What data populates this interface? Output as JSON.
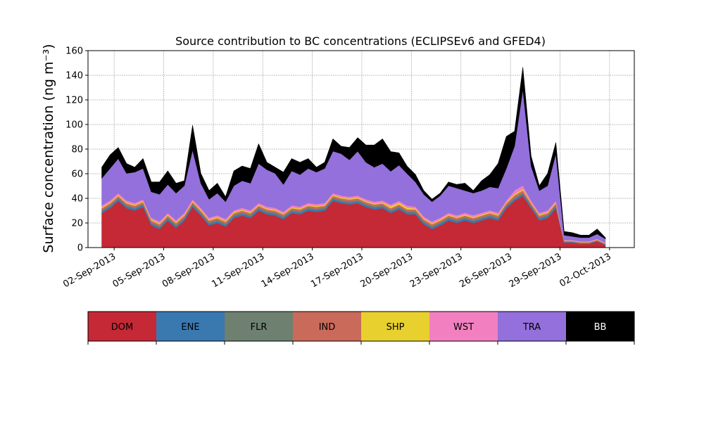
{
  "chart_data": {
    "type": "area",
    "stacked": true,
    "title": "Source contribution to BC concentrations (ECLIPSEv6 and GFED4)",
    "ylabel": "Surface concentration (ng m⁻³)",
    "xlabel": "",
    "ylim": [
      0,
      160
    ],
    "yticks": [
      "0",
      "20",
      "40",
      "60",
      "80",
      "100",
      "120",
      "140",
      "160"
    ],
    "xlim": [
      "2013-08-31 10:00",
      "2013-10-03 12:00"
    ],
    "xticks": [
      {
        "date": "2013-09-02",
        "label": "02-Sep-2013"
      },
      {
        "date": "2013-09-05",
        "label": "05-Sep-2013"
      },
      {
        "date": "2013-09-08",
        "label": "08-Sep-2013"
      },
      {
        "date": "2013-09-11",
        "label": "11-Sep-2013"
      },
      {
        "date": "2013-09-14",
        "label": "14-Sep-2013"
      },
      {
        "date": "2013-09-17",
        "label": "17-Sep-2013"
      },
      {
        "date": "2013-09-20",
        "label": "20-Sep-2013"
      },
      {
        "date": "2013-09-23",
        "label": "23-Sep-2013"
      },
      {
        "date": "2013-09-26",
        "label": "26-Sep-2013"
      },
      {
        "date": "2013-09-29",
        "label": "29-Sep-2013"
      },
      {
        "date": "2013-10-02",
        "label": "02-Oct-2013"
      }
    ],
    "grid": true,
    "legend": "colorbar-below",
    "x": [
      "2013-09-01 06:00",
      "2013-09-01 18:00",
      "2013-09-02 06:00",
      "2013-09-02 18:00",
      "2013-09-03 06:00",
      "2013-09-03 18:00",
      "2013-09-04 06:00",
      "2013-09-04 18:00",
      "2013-09-05 06:00",
      "2013-09-05 18:00",
      "2013-09-06 06:00",
      "2013-09-06 18:00",
      "2013-09-07 06:00",
      "2013-09-07 18:00",
      "2013-09-08 06:00",
      "2013-09-08 18:00",
      "2013-09-09 06:00",
      "2013-09-09 18:00",
      "2013-09-10 06:00",
      "2013-09-10 18:00",
      "2013-09-11 06:00",
      "2013-09-11 18:00",
      "2013-09-12 06:00",
      "2013-09-12 18:00",
      "2013-09-13 06:00",
      "2013-09-13 18:00",
      "2013-09-14 06:00",
      "2013-09-14 18:00",
      "2013-09-15 06:00",
      "2013-09-15 18:00",
      "2013-09-16 06:00",
      "2013-09-16 18:00",
      "2013-09-17 06:00",
      "2013-09-17 18:00",
      "2013-09-18 06:00",
      "2013-09-18 18:00",
      "2013-09-19 06:00",
      "2013-09-19 18:00",
      "2013-09-20 06:00",
      "2013-09-20 18:00",
      "2013-09-21 06:00",
      "2013-09-21 18:00",
      "2013-09-22 06:00",
      "2013-09-22 18:00",
      "2013-09-23 06:00",
      "2013-09-23 18:00",
      "2013-09-24 06:00",
      "2013-09-24 18:00",
      "2013-09-25 06:00",
      "2013-09-25 18:00",
      "2013-09-26 06:00",
      "2013-09-26 18:00",
      "2013-09-27 06:00",
      "2013-09-27 18:00",
      "2013-09-28 06:00",
      "2013-09-28 18:00",
      "2013-09-29 06:00",
      "2013-09-29 18:00",
      "2013-09-30 06:00",
      "2013-09-30 18:00",
      "2013-10-01 06:00",
      "2013-10-01 18:00"
    ],
    "series": [
      {
        "name": "DOM",
        "color": "#c42935",
        "values": [
          28,
          32,
          38,
          32,
          30,
          33,
          18,
          15,
          22,
          16,
          22,
          33,
          26,
          18,
          20,
          17,
          24,
          26,
          24,
          30,
          27,
          26,
          23,
          28,
          27,
          30,
          29,
          30,
          38,
          36,
          35,
          36,
          33,
          31,
          32,
          28,
          31,
          27,
          27,
          19,
          15,
          18,
          22,
          20,
          22,
          20,
          22,
          24,
          22,
          32,
          38,
          42,
          32,
          22,
          24,
          32,
          4,
          4,
          3,
          3,
          5,
          2
        ]
      },
      {
        "name": "ENE",
        "color": "#3a78b0",
        "values": [
          1.5,
          1.5,
          1.5,
          1.5,
          1.5,
          1.5,
          1.5,
          1.5,
          1.5,
          1.5,
          1.5,
          1.5,
          1.5,
          1.5,
          1.5,
          1.5,
          1.5,
          1.5,
          1.5,
          1.5,
          1.5,
          1.5,
          1.5,
          1.5,
          1.5,
          1.5,
          1.5,
          1.5,
          1.5,
          1.5,
          1.5,
          1.5,
          1.5,
          1.5,
          1.5,
          1.5,
          1.5,
          1.5,
          1.5,
          1.5,
          1.5,
          1.5,
          1.5,
          1.5,
          1.5,
          1.5,
          1.5,
          1.5,
          1.5,
          1.5,
          1.5,
          1.5,
          1.5,
          1.5,
          1.5,
          1.5,
          0.5,
          0.5,
          0.5,
          0.5,
          0.5,
          0.5
        ]
      },
      {
        "name": "FLR",
        "color": "#6e8070",
        "values": [
          1,
          1,
          1,
          1,
          1,
          1,
          1,
          1,
          1,
          1,
          1,
          1,
          1,
          1,
          1,
          1,
          1,
          1,
          1,
          1,
          1,
          1,
          1,
          1,
          1,
          1,
          1,
          1,
          1,
          1,
          1,
          1,
          1,
          1,
          1,
          1,
          1,
          1,
          1,
          1,
          1,
          1,
          1,
          1,
          1,
          1,
          1,
          1,
          1,
          1,
          1,
          1,
          1,
          1,
          1,
          1,
          0.3,
          0.3,
          0.3,
          0.3,
          0.3,
          0.3
        ]
      },
      {
        "name": "IND",
        "color": "#c96a5a",
        "values": [
          1.5,
          1.5,
          1.5,
          1.5,
          1.5,
          1.5,
          1.5,
          1.5,
          1.5,
          1.5,
          1.5,
          1.5,
          1.5,
          1.5,
          1.5,
          1.5,
          1.5,
          1.5,
          1.5,
          1.5,
          1.5,
          1.5,
          1.5,
          1.5,
          1.5,
          1.5,
          1.5,
          1.5,
          1.5,
          1.5,
          1.5,
          1.5,
          1.5,
          1.5,
          1.5,
          1.5,
          1.5,
          1.5,
          1.5,
          1.5,
          1.5,
          1.5,
          1.5,
          1.5,
          1.5,
          1.5,
          1.5,
          1.5,
          1.5,
          1.5,
          2,
          2,
          1.5,
          1.5,
          1.5,
          1.5,
          0.5,
          0.5,
          0.5,
          0.5,
          0.5,
          0.5
        ]
      },
      {
        "name": "SHP",
        "color": "#e8d02e",
        "values": [
          0.8,
          0.8,
          0.8,
          0.8,
          0.8,
          0.8,
          0.8,
          0.8,
          0.8,
          0.8,
          0.8,
          0.8,
          0.8,
          0.8,
          0.8,
          0.8,
          0.8,
          0.8,
          0.8,
          0.8,
          0.8,
          0.8,
          0.8,
          0.8,
          0.8,
          0.8,
          0.8,
          0.8,
          0.8,
          0.8,
          0.8,
          0.8,
          0.8,
          0.8,
          0.8,
          1.5,
          1.5,
          1.5,
          0.8,
          0.8,
          0.8,
          0.8,
          0.8,
          0.8,
          0.8,
          0.8,
          0.8,
          0.8,
          0.8,
          0.8,
          1,
          1,
          0.8,
          0.8,
          0.8,
          0.8,
          0.3,
          0.3,
          0.3,
          0.3,
          0.3,
          0.3
        ]
      },
      {
        "name": "WST",
        "color": "#f280c0",
        "values": [
          1.5,
          1.5,
          1.5,
          1.5,
          1.5,
          1.5,
          1.5,
          1.5,
          1.5,
          1.5,
          1.5,
          1.5,
          1.5,
          1.5,
          1.5,
          1.5,
          1.5,
          1.5,
          1.5,
          1.5,
          1.5,
          1.5,
          1.5,
          1.5,
          1.5,
          1.5,
          1.5,
          1.5,
          1.5,
          1.5,
          1.5,
          1.5,
          1.5,
          1.5,
          1.5,
          1.5,
          1.5,
          1.5,
          1.5,
          1.5,
          1.5,
          1.5,
          1.5,
          1.5,
          1.5,
          1.5,
          1.5,
          1.5,
          1.5,
          1.5,
          3,
          3,
          1.5,
          1.5,
          1.5,
          1.5,
          0.5,
          0.5,
          0.5,
          0.5,
          0.5,
          0.5
        ]
      },
      {
        "name": "TRA",
        "color": "#9370db",
        "values": [
          22,
          26,
          28,
          22,
          25,
          25,
          21,
          22,
          23,
          22,
          22,
          40,
          20,
          15,
          18,
          14,
          20,
          22,
          22,
          32,
          30,
          28,
          22,
          28,
          26,
          28,
          26,
          28,
          34,
          34,
          30,
          36,
          30,
          28,
          30,
          27,
          29,
          26,
          20,
          18,
          16,
          18,
          22,
          22,
          18,
          18,
          18,
          19,
          20,
          26,
          36,
          78,
          28,
          18,
          20,
          38,
          4,
          3,
          3,
          3,
          4,
          3
        ]
      },
      {
        "name": "BB",
        "color": "#000000",
        "values": [
          9,
          11,
          9,
          8,
          4,
          8,
          8,
          10,
          11,
          8,
          4,
          20,
          8,
          7,
          8,
          4,
          12,
          12,
          12,
          16,
          6,
          5,
          10,
          10,
          10,
          8,
          4,
          5,
          10,
          6,
          10,
          11,
          14,
          18,
          20,
          16,
          10,
          6,
          6,
          3,
          2,
          2,
          3,
          3,
          6,
          2,
          8,
          10,
          20,
          26,
          12,
          18,
          8,
          4,
          10,
          9,
          3,
          3,
          2,
          2,
          4,
          1
        ]
      }
    ],
    "legend_entries": [
      "DOM",
      "ENE",
      "FLR",
      "IND",
      "SHP",
      "WST",
      "TRA",
      "BB"
    ]
  }
}
